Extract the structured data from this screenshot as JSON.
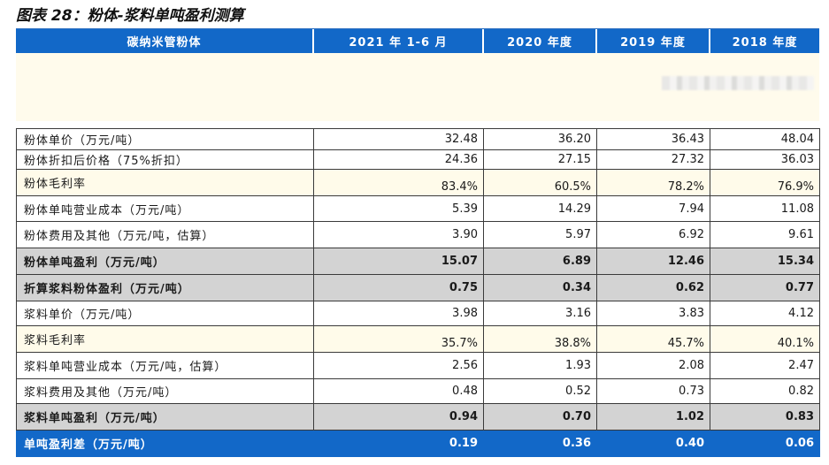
{
  "title": "图表 28：粉体-浆料单吨盈利测算",
  "columns": [
    "碳纳米管粉体",
    "2021 年 1-6 月",
    "2020 年度",
    "2019 年度",
    "2018 年度"
  ],
  "rows": [
    {
      "label": "粉体单价（万元/吨）",
      "values": [
        "32.48",
        "36.20",
        "36.43",
        "48.04"
      ]
    },
    {
      "label": "粉体折扣后价格（75%折扣）",
      "values": [
        "24.36",
        "27.15",
        "27.32",
        "36.03"
      ]
    },
    {
      "label": "粉体毛利率",
      "values": [
        "83.4%",
        "60.5%",
        "78.2%",
        "76.9%"
      ]
    },
    {
      "label": "粉体单吨营业成本（万元/吨）",
      "values": [
        "5.39",
        "14.29",
        "7.94",
        "11.08"
      ]
    },
    {
      "label": "粉体费用及其他（万元/吨，估算）",
      "values": [
        "3.90",
        "5.97",
        "6.92",
        "9.61"
      ]
    },
    {
      "label": "粉体单吨盈利（万元/吨）",
      "values": [
        "15.07",
        "6.89",
        "12.46",
        "15.34"
      ]
    },
    {
      "label": "折算浆料粉体盈利（万元/吨）",
      "values": [
        "0.75",
        "0.34",
        "0.62",
        "0.77"
      ]
    },
    {
      "label": "浆料单价（万元/吨）",
      "values": [
        "3.98",
        "3.16",
        "3.83",
        "4.12"
      ]
    },
    {
      "label": "浆料毛利率",
      "values": [
        "35.7%",
        "38.8%",
        "45.7%",
        "40.1%"
      ]
    },
    {
      "label": "浆料单吨营业成本（万元/吨，估算）",
      "values": [
        "2.56",
        "1.93",
        "2.08",
        "2.47"
      ]
    },
    {
      "label": "浆料费用及其他（万元/吨）",
      "values": [
        "0.48",
        "0.52",
        "0.73",
        "0.82"
      ]
    },
    {
      "label": "浆料单吨盈利（万元/吨）",
      "values": [
        "0.94",
        "0.70",
        "1.02",
        "0.83"
      ]
    },
    {
      "label": "单吨盈利差（万元/吨）",
      "values": [
        "0.19",
        "0.36",
        "0.40",
        "0.06"
      ]
    }
  ]
}
